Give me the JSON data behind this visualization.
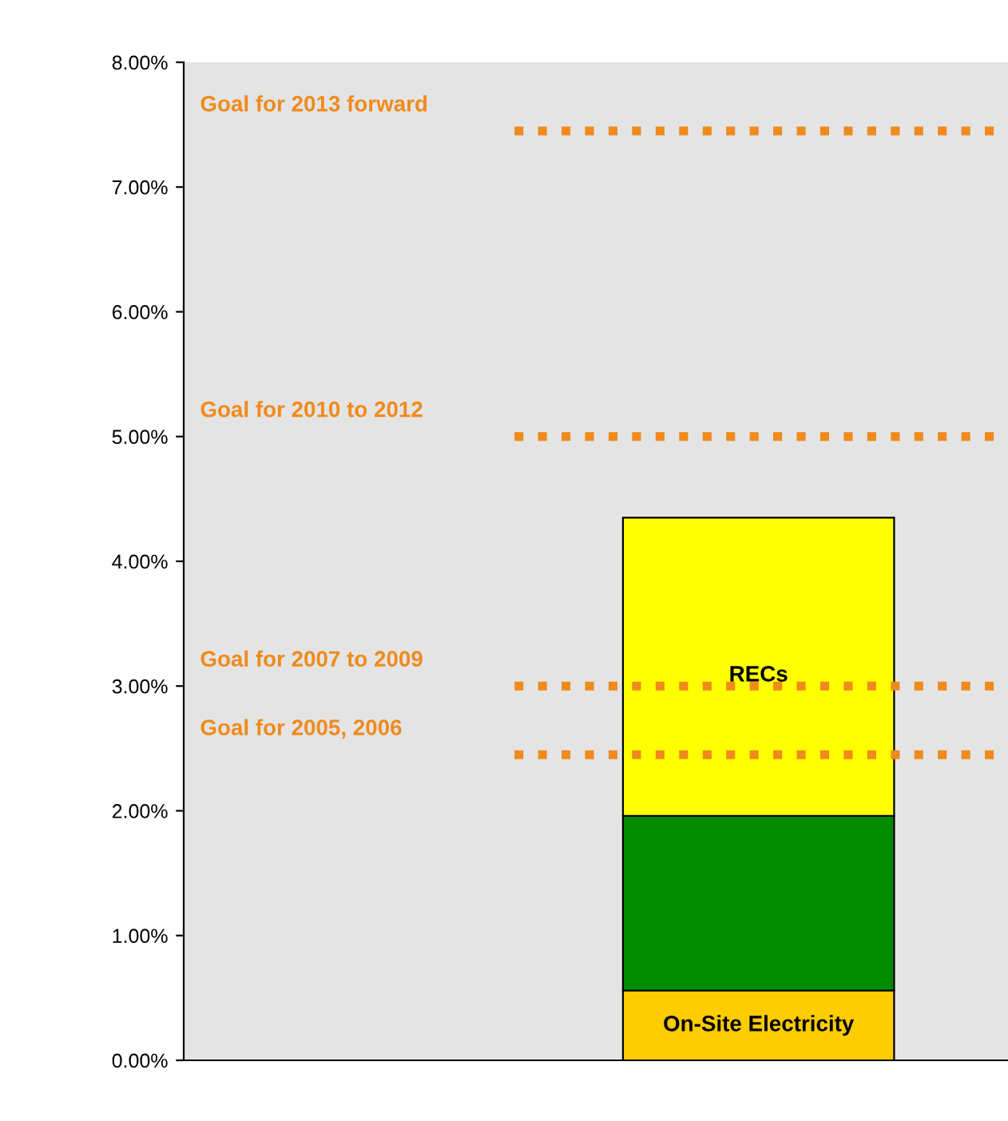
{
  "chart_data": {
    "type": "bar",
    "stacked": true,
    "categories": [
      null
    ],
    "series": [
      {
        "name": "On-Site Electricity",
        "color": "#ffcc00",
        "values": [
          0.56
        ]
      },
      {
        "color": "#008c00",
        "values": [
          1.4
        ]
      },
      {
        "name": "RECs",
        "color": "#ffff00",
        "values": [
          2.39
        ]
      }
    ],
    "ylim": [
      0,
      8
    ],
    "yticks": [
      {
        "value": 0,
        "label": "0.00%"
      },
      {
        "value": 1,
        "label": "1.00%"
      },
      {
        "value": 2,
        "label": "2.00%"
      },
      {
        "value": 3,
        "label": "3.00%"
      },
      {
        "value": 4,
        "label": "4.00%"
      },
      {
        "value": 5,
        "label": "5.00%"
      },
      {
        "value": 6,
        "label": "6.00%"
      },
      {
        "value": 7,
        "label": "7.00%"
      },
      {
        "value": 8,
        "label": "8.00%"
      }
    ],
    "ref_lines": [
      {
        "axis": "y",
        "value": 7.45,
        "label": "Goal for 2013 forward",
        "color": "#f08a1c",
        "line_style": "dotted"
      },
      {
        "axis": "y",
        "value": 5.0,
        "label": "Goal for 2010 to 2012",
        "color": "#f08a1c",
        "line_style": "dotted"
      },
      {
        "axis": "y",
        "value": 3.0,
        "label": "Goal for 2007 to 2009",
        "color": "#f08a1c",
        "line_style": "dotted"
      },
      {
        "axis": "y",
        "value": 2.45,
        "label": "Goal for 2005, 2006",
        "color": "#f08a1c",
        "line_style": "dotted"
      }
    ],
    "grid": false,
    "legend": false
  }
}
